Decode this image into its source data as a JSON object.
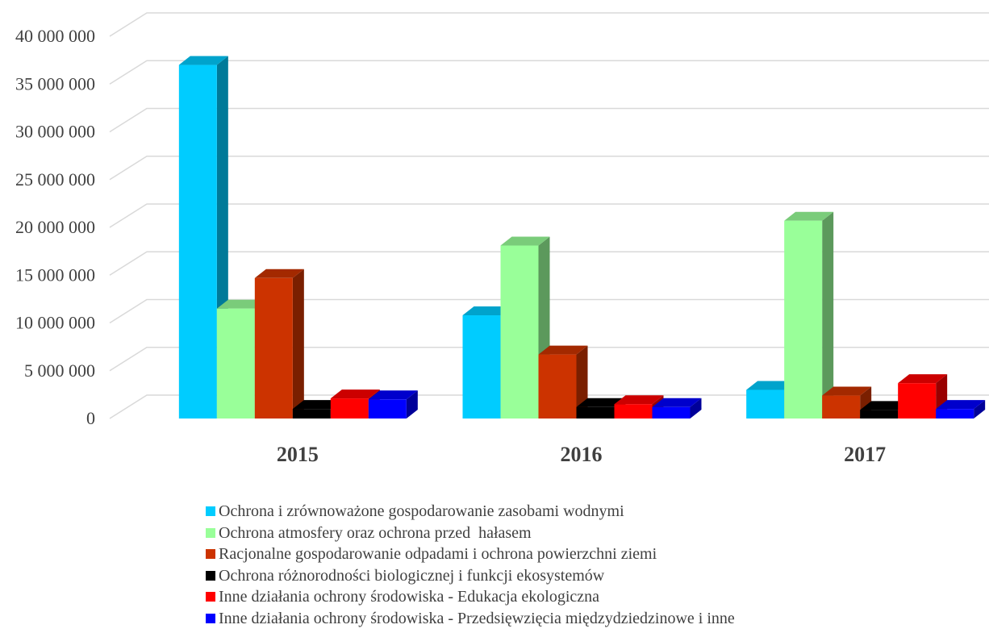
{
  "chart_data": {
    "type": "bar",
    "subtype": "3d-clustered-column",
    "categories": [
      "2015",
      "2016",
      "2017"
    ],
    "ylim": [
      0,
      40000000
    ],
    "yticks": [
      {
        "value": 0,
        "label": "0"
      },
      {
        "value": 5000000,
        "label": "5 000 000"
      },
      {
        "value": 10000000,
        "label": "10 000 000"
      },
      {
        "value": 15000000,
        "label": "15 000 000"
      },
      {
        "value": 20000000,
        "label": "20 000 000"
      },
      {
        "value": 25000000,
        "label": "25 000 000"
      },
      {
        "value": 30000000,
        "label": "30 000 000"
      },
      {
        "value": 35000000,
        "label": "35 000 000"
      },
      {
        "value": 40000000,
        "label": "40 000 000"
      }
    ],
    "grid": true,
    "legend_position": "bottom",
    "series": [
      {
        "name": "Ochrona i zrównoważone gospodarowanie zasobami wodnymi",
        "color": "#00CCFF",
        "values": [
          37000000,
          10800000,
          3000000
        ]
      },
      {
        "name": "Ochrona atmosfery oraz ochrona przed  hałasem",
        "color": "#99FF99",
        "values": [
          11500000,
          18100000,
          20700000
        ]
      },
      {
        "name": "Racjonalne gospodarowanie odpadami i ochrona powierzchni ziemi",
        "color": "#CC3300",
        "values": [
          14700000,
          6700000,
          2400000
        ]
      },
      {
        "name": "Ochrona różnorodności biologicznej i funkcji ekosystemów",
        "color": "#000000",
        "values": [
          1000000,
          1200000,
          900000
        ]
      },
      {
        "name": "Inne działania ochrony środowiska - Edukacja ekologiczna",
        "color": "#FF0000",
        "values": [
          2100000,
          1500000,
          3700000
        ]
      },
      {
        "name": "Inne działania ochrony środowiska - Przedsięwzięcia międzydziedzinowe i inne",
        "color": "#0000FF",
        "values": [
          2000000,
          1200000,
          1000000
        ]
      }
    ]
  }
}
